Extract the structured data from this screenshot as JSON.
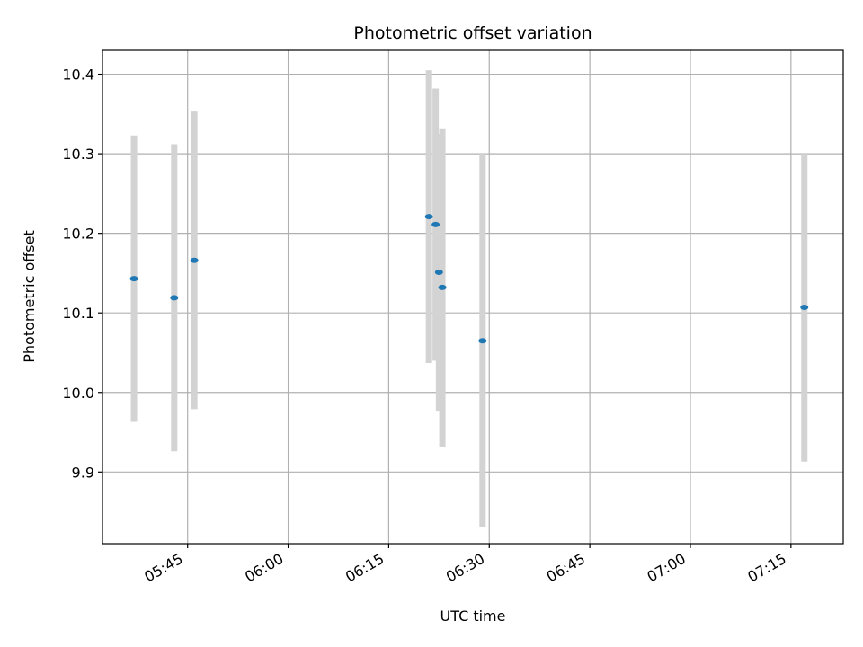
{
  "chart_data": {
    "type": "scatter",
    "title": "Photometric offset variation",
    "xlabel": "UTC time",
    "ylabel": "Photometric offset",
    "x_tick_labels": [
      "05:45",
      "06:00",
      "06:15",
      "06:30",
      "06:45",
      "07:00",
      "07:15"
    ],
    "x_tick_minutes": [
      345,
      360,
      375,
      390,
      405,
      420,
      435
    ],
    "y_tick_labels": [
      "9.9",
      "10.0",
      "10.1",
      "10.2",
      "10.3",
      "10.4"
    ],
    "y_tick_values": [
      9.9,
      10.0,
      10.1,
      10.2,
      10.3,
      10.4
    ],
    "xlim": [
      "05:30",
      "07:20"
    ],
    "ylim": [
      9.81,
      10.43
    ],
    "grid": true,
    "marker_color": "#1f77b4",
    "errorbar_color": "#d3d3d3",
    "points": [
      {
        "time": "05:37",
        "value": 10.143,
        "low": 9.963,
        "high": 10.323
      },
      {
        "time": "05:43",
        "value": 10.119,
        "low": 9.926,
        "high": 10.312
      },
      {
        "time": "05:46",
        "value": 10.166,
        "low": 9.979,
        "high": 10.353
      },
      {
        "time": "06:21",
        "value": 10.221,
        "low": 10.037,
        "high": 10.405
      },
      {
        "time": "06:22",
        "value": 10.211,
        "low": 10.04,
        "high": 10.382
      },
      {
        "time": "06:22.5",
        "value": 10.151,
        "low": 9.977,
        "high": 10.325
      },
      {
        "time": "06:23",
        "value": 10.132,
        "low": 9.932,
        "high": 10.332
      },
      {
        "time": "06:29",
        "value": 10.065,
        "low": 9.831,
        "high": 10.3
      },
      {
        "time": "07:17",
        "value": 10.107,
        "low": 9.913,
        "high": 10.3
      }
    ]
  }
}
